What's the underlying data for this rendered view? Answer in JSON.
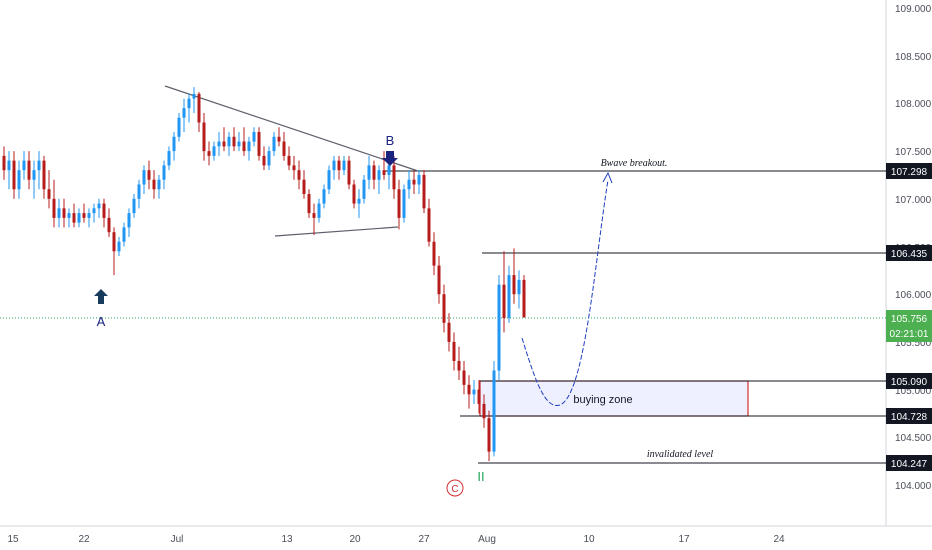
{
  "chart_data": {
    "type": "candlestick",
    "title": "",
    "y_axis": {
      "ticks": [
        "109.000",
        "108.500",
        "108.000",
        "107.500",
        "107.000",
        "106.500",
        "106.000",
        "105.500",
        "105.000",
        "104.500",
        "104.000"
      ],
      "range": [
        103.78,
        109.08
      ]
    },
    "x_axis": {
      "ticks": [
        "15",
        "22",
        "Jul",
        "13",
        "20",
        "27",
        "Aug",
        "10",
        "17",
        "24"
      ]
    },
    "levels": [
      {
        "id": "bwave-breakout",
        "value": 107.298,
        "label": "107.298",
        "annotation": "Bwave breakout."
      },
      {
        "id": "resistance",
        "value": 106.435,
        "label": "106.435",
        "annotation": ""
      },
      {
        "id": "zone-top",
        "value": 105.09,
        "label": "105.090",
        "annotation": ""
      },
      {
        "id": "zone-bottom",
        "value": 104.728,
        "label": "104.728",
        "annotation": ""
      },
      {
        "id": "invalidated",
        "value": 104.247,
        "label": "104.247",
        "annotation": "invalidated level"
      }
    ],
    "current_price": {
      "value": 105.756,
      "label": "105.756",
      "countdown": "02:21:01"
    },
    "zones": [
      {
        "name": "buying zone",
        "top": 105.09,
        "bottom": 104.728
      }
    ],
    "wave_labels": [
      "A",
      "B",
      "C",
      "II"
    ],
    "ohlc": [
      [
        107.45,
        107.55,
        107.2,
        107.3
      ],
      [
        107.3,
        107.5,
        107.1,
        107.4
      ],
      [
        107.4,
        107.5,
        107.0,
        107.1
      ],
      [
        107.1,
        107.4,
        107.0,
        107.3
      ],
      [
        107.3,
        107.5,
        107.2,
        107.4
      ],
      [
        107.4,
        107.5,
        107.1,
        107.2
      ],
      [
        107.2,
        107.4,
        107.0,
        107.3
      ],
      [
        107.3,
        107.5,
        107.1,
        107.4
      ],
      [
        107.4,
        107.45,
        107.0,
        107.1
      ],
      [
        107.1,
        107.3,
        106.9,
        107.0
      ],
      [
        107.0,
        107.2,
        106.7,
        106.8
      ],
      [
        106.8,
        107.0,
        106.7,
        106.9
      ],
      [
        106.9,
        107.0,
        106.7,
        106.8
      ],
      [
        106.8,
        106.9,
        106.7,
        106.85
      ],
      [
        106.85,
        106.95,
        106.7,
        106.75
      ],
      [
        106.75,
        106.9,
        106.7,
        106.85
      ],
      [
        106.85,
        106.95,
        106.75,
        106.8
      ],
      [
        106.8,
        106.9,
        106.7,
        106.85
      ],
      [
        106.85,
        106.95,
        106.75,
        106.9
      ],
      [
        106.9,
        107.0,
        106.8,
        106.95
      ],
      [
        106.95,
        107.0,
        106.7,
        106.8
      ],
      [
        106.8,
        106.9,
        106.6,
        106.65
      ],
      [
        106.65,
        106.7,
        106.2,
        106.45
      ],
      [
        106.45,
        106.6,
        106.4,
        106.55
      ],
      [
        106.55,
        106.75,
        106.5,
        106.7
      ],
      [
        106.7,
        106.9,
        106.6,
        106.85
      ],
      [
        106.85,
        107.05,
        106.8,
        107.0
      ],
      [
        107.0,
        107.2,
        106.9,
        107.15
      ],
      [
        107.15,
        107.35,
        107.05,
        107.3
      ],
      [
        107.3,
        107.4,
        107.1,
        107.2
      ],
      [
        107.2,
        107.3,
        107.0,
        107.1
      ],
      [
        107.1,
        107.25,
        107.0,
        107.2
      ],
      [
        107.2,
        107.4,
        107.1,
        107.35
      ],
      [
        107.35,
        107.55,
        107.3,
        107.5
      ],
      [
        107.5,
        107.7,
        107.4,
        107.65
      ],
      [
        107.65,
        107.9,
        107.6,
        107.85
      ],
      [
        107.85,
        108.05,
        107.7,
        107.95
      ],
      [
        107.95,
        108.1,
        107.8,
        108.05
      ],
      [
        108.05,
        108.17,
        107.9,
        108.1
      ],
      [
        108.1,
        108.12,
        107.7,
        107.8
      ],
      [
        107.8,
        107.9,
        107.4,
        107.5
      ],
      [
        107.5,
        107.6,
        107.35,
        107.45
      ],
      [
        107.45,
        107.6,
        107.4,
        107.55
      ],
      [
        107.55,
        107.7,
        107.45,
        107.6
      ],
      [
        107.6,
        107.75,
        107.5,
        107.55
      ],
      [
        107.55,
        107.7,
        107.45,
        107.65
      ],
      [
        107.65,
        107.75,
        107.5,
        107.55
      ],
      [
        107.55,
        107.7,
        107.5,
        107.6
      ],
      [
        107.6,
        107.75,
        107.45,
        107.5
      ],
      [
        107.5,
        107.65,
        107.4,
        107.6
      ],
      [
        107.6,
        107.75,
        107.55,
        107.7
      ],
      [
        107.7,
        107.75,
        107.4,
        107.45
      ],
      [
        107.45,
        107.55,
        107.3,
        107.35
      ],
      [
        107.35,
        107.55,
        107.3,
        107.5
      ],
      [
        107.5,
        107.7,
        107.45,
        107.65
      ],
      [
        107.65,
        107.75,
        107.55,
        107.6
      ],
      [
        107.6,
        107.7,
        107.4,
        107.45
      ],
      [
        107.45,
        107.55,
        107.3,
        107.35
      ],
      [
        107.35,
        107.45,
        107.2,
        107.3
      ],
      [
        107.3,
        107.4,
        107.1,
        107.2
      ],
      [
        107.2,
        107.3,
        107.0,
        107.05
      ],
      [
        107.05,
        107.1,
        106.8,
        106.85
      ],
      [
        106.85,
        106.95,
        106.62,
        106.8
      ],
      [
        106.8,
        107.0,
        106.75,
        106.95
      ],
      [
        106.95,
        107.15,
        106.9,
        107.1
      ],
      [
        107.1,
        107.35,
        107.05,
        107.3
      ],
      [
        107.3,
        107.45,
        107.2,
        107.4
      ],
      [
        107.4,
        107.45,
        107.2,
        107.3
      ],
      [
        107.3,
        107.45,
        107.25,
        107.4
      ],
      [
        107.4,
        107.45,
        107.1,
        107.15
      ],
      [
        107.15,
        107.2,
        106.9,
        106.95
      ],
      [
        106.95,
        107.1,
        106.8,
        107.0
      ],
      [
        107.0,
        107.25,
        106.95,
        107.2
      ],
      [
        107.2,
        107.45,
        107.1,
        107.35
      ],
      [
        107.35,
        107.4,
        107.1,
        107.2
      ],
      [
        107.2,
        107.35,
        107.05,
        107.3
      ],
      [
        107.3,
        107.5,
        107.2,
        107.25
      ],
      [
        107.25,
        107.4,
        107.1,
        107.35
      ],
      [
        107.35,
        107.45,
        107.0,
        107.1
      ],
      [
        107.1,
        107.2,
        106.68,
        106.8
      ],
      [
        106.8,
        107.15,
        106.75,
        107.1
      ],
      [
        107.1,
        107.3,
        107.0,
        107.2
      ],
      [
        107.2,
        107.3,
        107.05,
        107.15
      ],
      [
        107.15,
        107.3,
        107.05,
        107.25
      ],
      [
        107.25,
        107.3,
        106.85,
        106.9
      ],
      [
        106.9,
        107.0,
        106.5,
        106.55
      ],
      [
        106.55,
        106.65,
        106.2,
        106.3
      ],
      [
        106.3,
        106.4,
        105.9,
        106.0
      ],
      [
        106.0,
        106.1,
        105.6,
        105.7
      ],
      [
        105.7,
        105.8,
        105.4,
        105.5
      ],
      [
        105.5,
        105.6,
        105.2,
        105.3
      ],
      [
        105.3,
        105.45,
        105.1,
        105.2
      ],
      [
        105.2,
        105.3,
        104.95,
        105.05
      ],
      [
        105.05,
        105.15,
        104.8,
        104.95
      ],
      [
        104.95,
        105.1,
        104.85,
        105.0
      ],
      [
        105.0,
        105.1,
        104.75,
        104.85
      ],
      [
        104.85,
        104.95,
        104.6,
        104.7
      ],
      [
        104.7,
        104.78,
        104.25,
        104.35
      ],
      [
        104.35,
        105.3,
        104.3,
        105.2
      ],
      [
        105.2,
        106.2,
        105.1,
        106.1
      ],
      [
        106.1,
        106.45,
        105.6,
        105.75
      ],
      [
        105.75,
        106.3,
        105.7,
        106.2
      ],
      [
        106.2,
        106.48,
        105.9,
        106.0
      ],
      [
        106.0,
        106.25,
        105.85,
        106.15
      ],
      [
        106.15,
        106.2,
        105.75,
        105.76
      ]
    ]
  }
}
